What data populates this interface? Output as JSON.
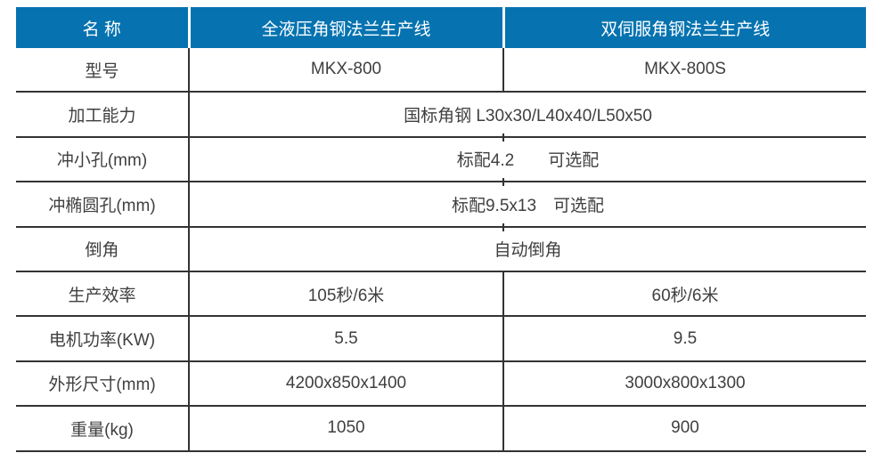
{
  "accent_color": "#0673b0",
  "line_color": "#333333",
  "text_color": "#3f3f3f",
  "table": {
    "header": {
      "name": "名 称",
      "product1": "全液压角钢法兰生产线",
      "product2": "双伺服角钢法兰生产线"
    },
    "rows": [
      {
        "label": "型号",
        "value1": "MKX-800",
        "value2": "MKX-800S"
      },
      {
        "label": "加工能力",
        "value": "国标角钢 L30x30/L40x40/L50x50"
      },
      {
        "label": "冲小孔(mm)",
        "value": "标配4.2　　可选配"
      },
      {
        "label": "冲椭圆孔(mm)",
        "value": "标配9.5x13　可选配"
      },
      {
        "label": "倒角",
        "value": "自动倒角"
      },
      {
        "label": "生产效率",
        "value1": "105秒/6米",
        "value2": "60秒/6米"
      },
      {
        "label": "电机功率(KW)",
        "value1": "5.5",
        "value2": "9.5"
      },
      {
        "label": "外形尺寸(mm)",
        "value1": "4200x850x1400",
        "value2": "3000x800x1300"
      },
      {
        "label": "重量(kg)",
        "value1": "1050",
        "value2": "900"
      }
    ]
  }
}
